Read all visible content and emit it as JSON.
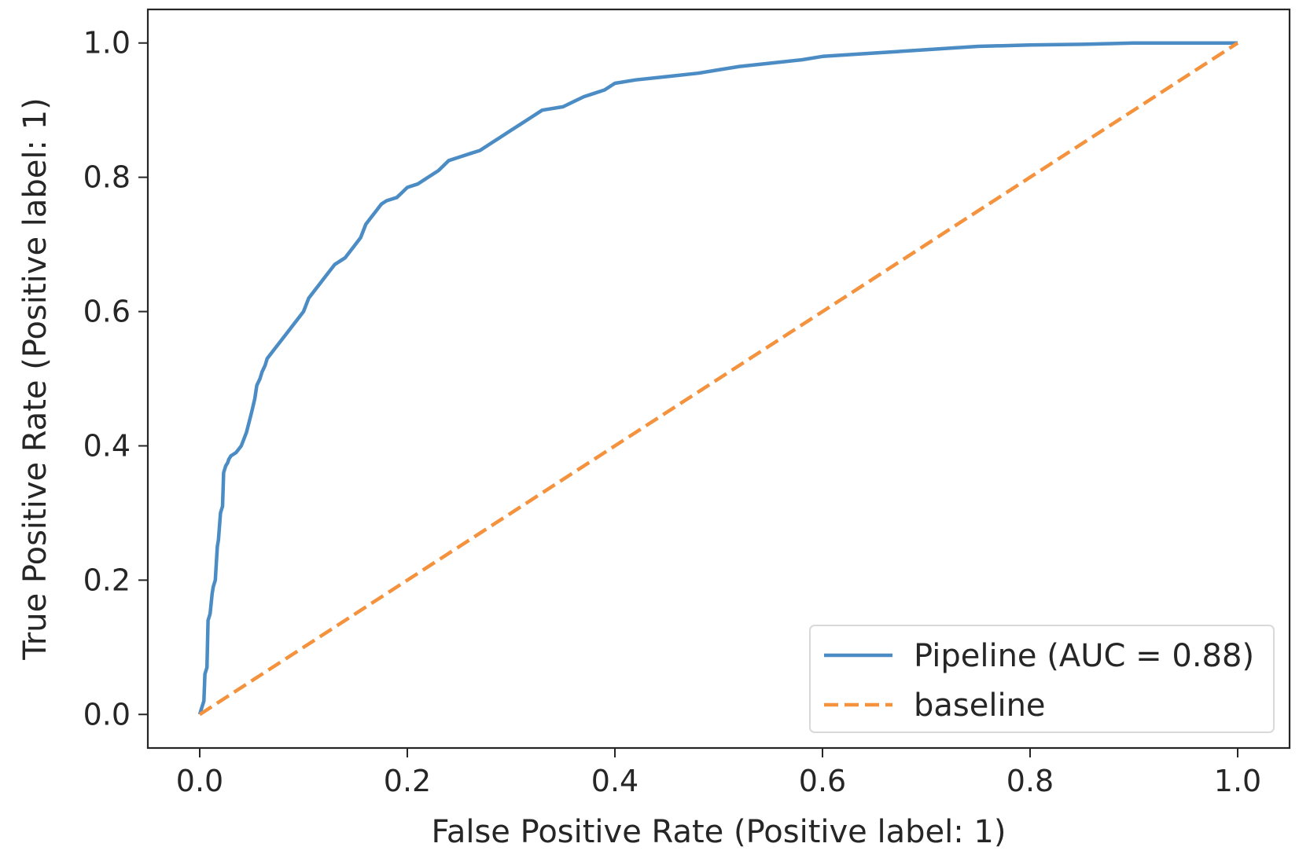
{
  "chart_data": {
    "type": "line",
    "xlabel": "False Positive Rate (Positive label: 1)",
    "ylabel": "True Positive Rate (Positive label: 1)",
    "xlim": [
      -0.05,
      1.05
    ],
    "ylim": [
      -0.05,
      1.05
    ],
    "xticks": [
      "0.0",
      "0.2",
      "0.4",
      "0.6",
      "0.8",
      "1.0"
    ],
    "yticks": [
      "0.0",
      "0.2",
      "0.4",
      "0.6",
      "0.8",
      "1.0"
    ],
    "grid": false,
    "legend_position": "lower-right",
    "series": [
      {
        "name": "Pipeline (AUC = 0.88)",
        "color": "#4c8cc4",
        "style": "solid",
        "x": [
          0.0,
          0.002,
          0.004,
          0.005,
          0.007,
          0.008,
          0.01,
          0.012,
          0.013,
          0.015,
          0.017,
          0.018,
          0.02,
          0.022,
          0.023,
          0.025,
          0.027,
          0.028,
          0.03,
          0.035,
          0.04,
          0.045,
          0.05,
          0.053,
          0.055,
          0.058,
          0.06,
          0.063,
          0.065,
          0.07,
          0.075,
          0.08,
          0.085,
          0.09,
          0.095,
          0.1,
          0.105,
          0.11,
          0.115,
          0.12,
          0.13,
          0.14,
          0.15,
          0.155,
          0.16,
          0.165,
          0.17,
          0.175,
          0.18,
          0.19,
          0.2,
          0.21,
          0.22,
          0.23,
          0.24,
          0.25,
          0.26,
          0.27,
          0.28,
          0.29,
          0.3,
          0.31,
          0.32,
          0.33,
          0.35,
          0.37,
          0.38,
          0.39,
          0.4,
          0.42,
          0.45,
          0.48,
          0.5,
          0.52,
          0.55,
          0.58,
          0.6,
          0.65,
          0.7,
          0.75,
          0.8,
          0.85,
          0.9,
          0.95,
          1.0
        ],
        "y": [
          0.0,
          0.01,
          0.02,
          0.06,
          0.07,
          0.14,
          0.15,
          0.18,
          0.19,
          0.2,
          0.25,
          0.26,
          0.3,
          0.31,
          0.36,
          0.37,
          0.375,
          0.38,
          0.385,
          0.39,
          0.4,
          0.42,
          0.45,
          0.47,
          0.49,
          0.5,
          0.51,
          0.52,
          0.53,
          0.54,
          0.55,
          0.56,
          0.57,
          0.58,
          0.59,
          0.6,
          0.62,
          0.63,
          0.64,
          0.65,
          0.67,
          0.68,
          0.7,
          0.71,
          0.73,
          0.74,
          0.75,
          0.76,
          0.765,
          0.77,
          0.785,
          0.79,
          0.8,
          0.81,
          0.825,
          0.83,
          0.835,
          0.84,
          0.85,
          0.86,
          0.87,
          0.88,
          0.89,
          0.9,
          0.905,
          0.92,
          0.925,
          0.93,
          0.94,
          0.945,
          0.95,
          0.955,
          0.96,
          0.965,
          0.97,
          0.975,
          0.98,
          0.985,
          0.99,
          0.995,
          0.997,
          0.998,
          1.0,
          1.0,
          1.0
        ]
      },
      {
        "name": "baseline",
        "color": "#f4923d",
        "style": "dashed",
        "x": [
          0.0,
          1.0
        ],
        "y": [
          0.0,
          1.0
        ]
      }
    ]
  }
}
